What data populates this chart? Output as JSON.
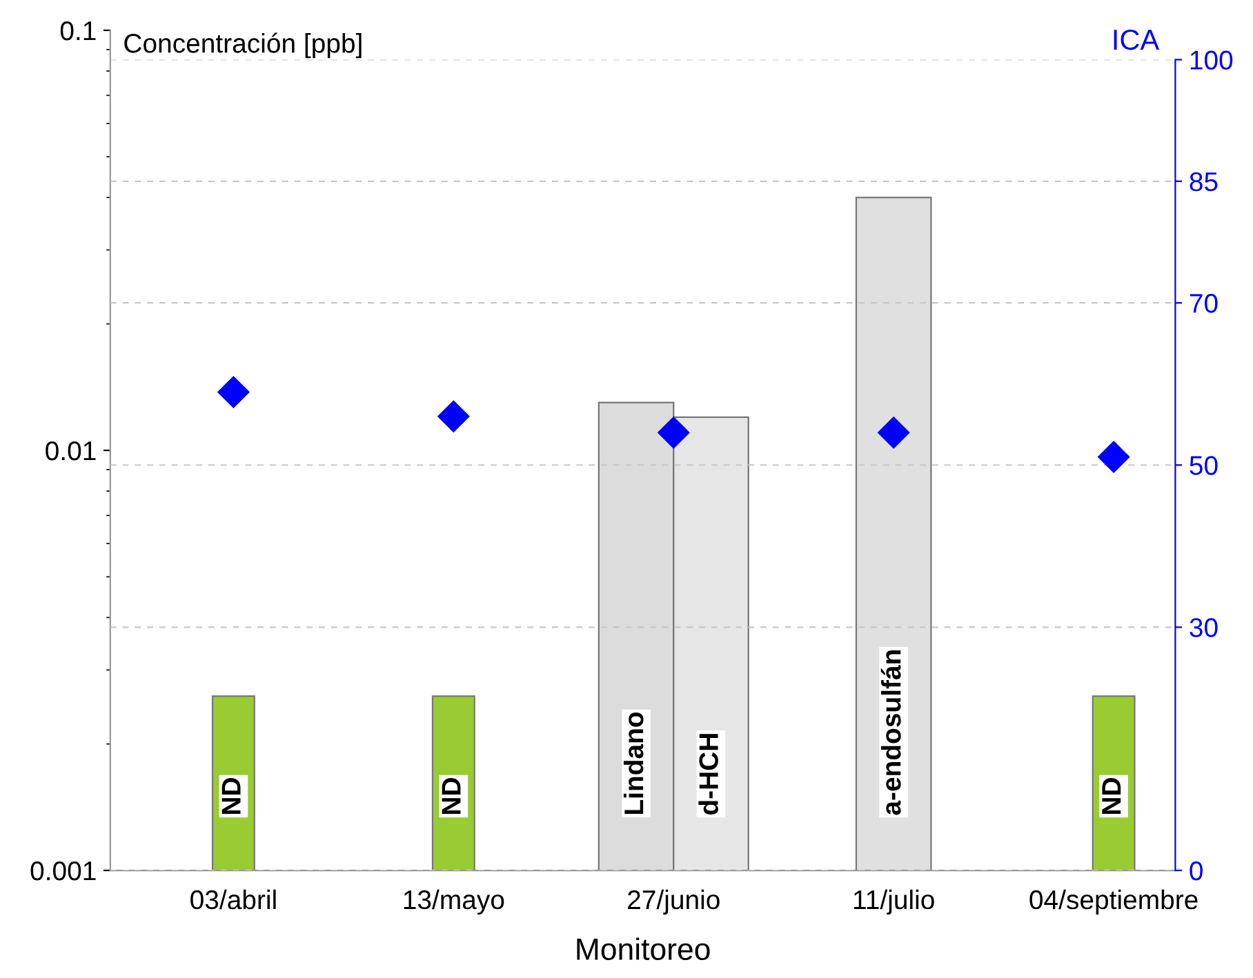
{
  "chart_data": {
    "type": "bar",
    "xlabel": "Monitoreo",
    "ylabel": "Concentración [ppb]",
    "y2label": "ICA",
    "categories": [
      "03/abril",
      "13/mayo",
      "27/junio",
      "11/julio",
      "04/septiembre"
    ],
    "series": [
      {
        "colors": [
          "#99cc33",
          "#99cc33",
          "#dcdcdc",
          "#e0e0e0",
          "#99cc33"
        ],
        "values": [
          0.0026,
          0.0026,
          0.013,
          0.04,
          0.0026
        ],
        "value_labels": [
          "ND",
          "ND",
          "Lindano",
          "a-endosulfán",
          "ND"
        ]
      },
      {
        "color": "#e6e6e6",
        "values": [
          null,
          null,
          0.012,
          null,
          null
        ],
        "value_labels": [
          null,
          null,
          "d-HCH",
          null,
          null
        ]
      },
      {
        "type": "scatter",
        "axis": "y2",
        "color": "#0000ff",
        "marker": "diamond",
        "values": [
          59,
          56,
          54,
          54,
          51
        ]
      }
    ],
    "log": "y",
    "ylim": [
      0.001,
      0.1
    ],
    "yticks": [
      0.001,
      0.01,
      0.1
    ],
    "y2lim": [
      0,
      100
    ],
    "y2ticks": [
      0,
      30,
      50,
      70,
      85,
      100
    ],
    "grid": "y",
    "legend": false
  }
}
